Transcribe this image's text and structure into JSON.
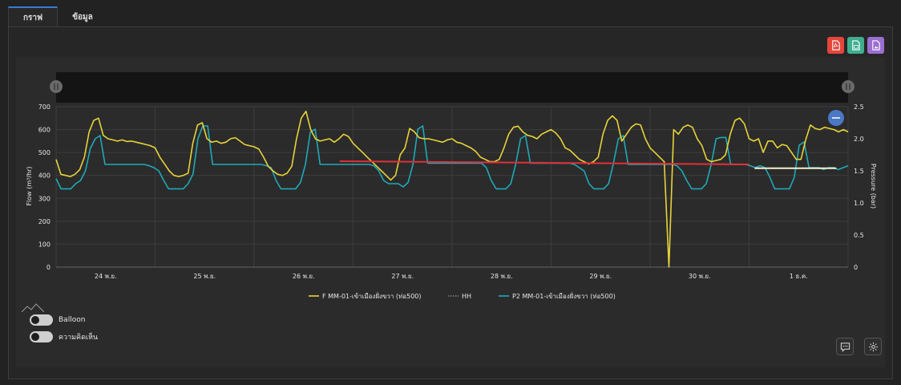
{
  "tabs": [
    {
      "label": "กราฟ",
      "active": true
    },
    {
      "label": "ข้อมูล",
      "active": false
    }
  ],
  "exports": [
    {
      "icon": "pdf-icon",
      "color": "#e5463c"
    },
    {
      "icon": "excel-icon",
      "color": "#3fae8e"
    },
    {
      "icon": "image-icon",
      "color": "#9b6fd1"
    }
  ],
  "toggles": [
    {
      "label": "Balloon",
      "on": false
    },
    {
      "label": "ความคิดเห็น",
      "on": false
    }
  ],
  "chart_data": {
    "type": "line",
    "ylabel_left": "Flow (m³/hr)",
    "ylabel_right": "Pressure (bar)",
    "yticks_left": [
      "700",
      "600",
      "500",
      "400",
      "300",
      "200",
      "100",
      "0"
    ],
    "yticks_right": [
      "2.5",
      "2.0",
      "1.5",
      "1.0",
      "0.5",
      "0"
    ],
    "ylim_left": [
      0,
      700
    ],
    "ylim_right": [
      0,
      2.5
    ],
    "x_categories": [
      "24 พ.ย.",
      "25 พ.ย.",
      "26 พ.ย.",
      "27 พ.ย.",
      "28 พ.ย.",
      "29 พ.ย.",
      "30 พ.ย.",
      "1 ธ.ค."
    ],
    "grid": true,
    "legend_position": "bottom",
    "legend": [
      {
        "name": "F MM-01-เข้าเมืองฝั่งขวา (ท่อ500)",
        "color": "#e8d33a",
        "style": "solid"
      },
      {
        "name": "HH",
        "color": "#888888",
        "style": "dotted"
      },
      {
        "name": "P2 MM-01-เข้าเมืองฝั่งขวา (ท่อ500)",
        "color": "#20a9b8",
        "style": "solid"
      }
    ],
    "flow_series": [
      470,
      405,
      400,
      395,
      405,
      425,
      480,
      590,
      640,
      650,
      575,
      560,
      555,
      550,
      555,
      548,
      550,
      545,
      540,
      535,
      530,
      520,
      480,
      450,
      420,
      400,
      395,
      400,
      410,
      540,
      620,
      630,
      560,
      545,
      550,
      540,
      545,
      560,
      565,
      550,
      535,
      530,
      525,
      515,
      480,
      440,
      420,
      405,
      400,
      410,
      440,
      560,
      650,
      680,
      600,
      560,
      550,
      555,
      560,
      545,
      560,
      580,
      570,
      540,
      520,
      500,
      480,
      460,
      440,
      420,
      400,
      380,
      400,
      490,
      520,
      605,
      590,
      565,
      560,
      560,
      555,
      550,
      545,
      555,
      560,
      545,
      540,
      530,
      520,
      505,
      480,
      470,
      460,
      460,
      470,
      520,
      580,
      610,
      615,
      590,
      575,
      570,
      560,
      580,
      590,
      600,
      585,
      560,
      520,
      510,
      490,
      470,
      460,
      450,
      460,
      480,
      580,
      640,
      660,
      640,
      550,
      580,
      610,
      625,
      620,
      560,
      520,
      500,
      480,
      460,
      0,
      600,
      580,
      610,
      620,
      610,
      560,
      530,
      470,
      460,
      465,
      470,
      490,
      580,
      640,
      650,
      625,
      560,
      550,
      560,
      500,
      550,
      550,
      520,
      535,
      530,
      500,
      470,
      470,
      555,
      620,
      605,
      600,
      610,
      605,
      600,
      590,
      600,
      590
    ],
    "pressure_series": [
      1.38,
      1.22,
      1.22,
      1.22,
      1.3,
      1.35,
      1.5,
      1.85,
      2.0,
      2.05,
      1.6,
      1.6,
      1.6,
      1.6,
      1.6,
      1.6,
      1.6,
      1.6,
      1.6,
      1.58,
      1.55,
      1.5,
      1.35,
      1.22,
      1.22,
      1.22,
      1.22,
      1.3,
      1.45,
      2.0,
      2.2,
      2.2,
      1.6,
      1.6,
      1.6,
      1.6,
      1.6,
      1.6,
      1.6,
      1.6,
      1.6,
      1.6,
      1.6,
      1.58,
      1.55,
      1.35,
      1.22,
      1.22,
      1.22,
      1.22,
      1.32,
      1.6,
      2.1,
      2.15,
      1.6,
      1.6,
      1.6,
      1.6,
      1.6,
      1.6,
      1.6,
      1.6,
      1.6,
      1.6,
      1.6,
      1.58,
      1.5,
      1.35,
      1.3,
      1.3,
      1.3,
      1.25,
      1.32,
      1.6,
      2.15,
      2.2,
      1.62,
      1.62,
      1.62,
      1.62,
      1.62,
      1.62,
      1.62,
      1.62,
      1.62,
      1.62,
      1.62,
      1.62,
      1.55,
      1.35,
      1.22,
      1.22,
      1.22,
      1.3,
      1.6,
      2.0,
      2.05,
      1.62,
      1.62,
      1.62,
      1.62,
      1.62,
      1.62,
      1.62,
      1.62,
      1.62,
      1.6,
      1.55,
      1.5,
      1.3,
      1.22,
      1.22,
      1.22,
      1.3,
      1.62,
      2.0,
      2.05,
      1.6,
      1.6,
      1.6,
      1.6,
      1.6,
      1.6,
      1.6,
      1.6,
      1.6,
      1.6,
      1.58,
      1.5,
      1.35,
      1.22,
      1.22,
      1.22,
      1.3,
      1.6,
      2.0,
      2.02,
      2.02,
      1.6,
      1.6,
      1.6,
      1.6,
      1.58,
      1.55,
      1.58,
      1.55,
      1.4,
      1.22,
      1.22,
      1.22,
      1.22,
      1.4,
      1.9,
      1.95,
      1.55,
      1.55,
      1.55,
      1.52,
      1.55,
      1.55,
      1.52,
      1.55,
      1.58
    ],
    "annotations": [
      {
        "type": "trend",
        "color": "#e0303a",
        "x_start": 0.358,
        "x_end": 0.875,
        "y_start": 1.65,
        "y_end": 1.6,
        "axis": "right"
      },
      {
        "type": "trend",
        "color": "#f3f0d0",
        "x_start": 0.882,
        "x_end": 0.985,
        "y_start": 1.54,
        "y_end": 1.54,
        "axis": "right"
      }
    ]
  }
}
